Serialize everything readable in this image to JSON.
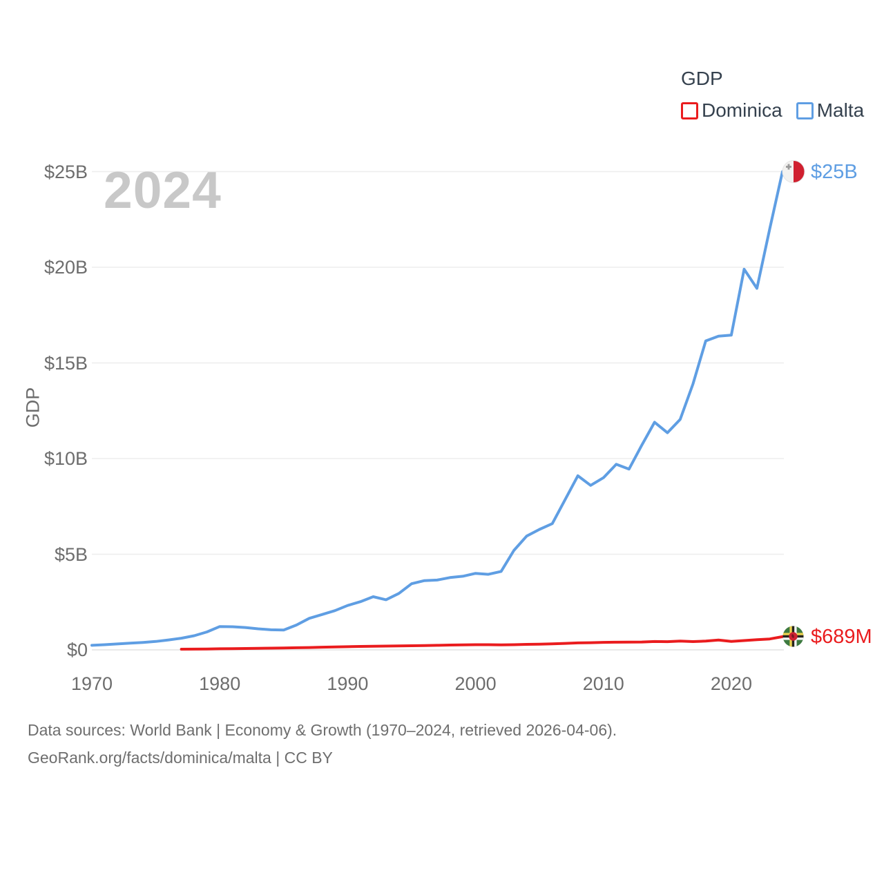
{
  "watermark_year": "2024",
  "footer": {
    "line1": "Data sources: World Bank | Economy & Growth (1970–2024, retrieved 2026-04-06).",
    "line2": "GeoRank.org/facts/dominica/malta | CC BY"
  },
  "chart_data": {
    "type": "line",
    "title": "GDP",
    "watermark_year": "2024",
    "ylabel": "GDP",
    "xlabel": "",
    "grid": true,
    "x_range": [
      1970,
      2024
    ],
    "ylim_billions": [
      0,
      25
    ],
    "ytick_labels": [
      "$0",
      "$5B",
      "$10B",
      "$15B",
      "$20B",
      "$25B"
    ],
    "ytick_billions": [
      0,
      5,
      10,
      15,
      20,
      25
    ],
    "xtick_labels": [
      "1970",
      "1980",
      "1990",
      "2000",
      "2010",
      "2020"
    ],
    "xtick_years": [
      1970,
      1980,
      1990,
      2000,
      2010,
      2020
    ],
    "legend": {
      "title": "GDP",
      "position": "top-right",
      "entries": [
        {
          "label": "Dominica",
          "color": "#ea1c1e"
        },
        {
          "label": "Malta",
          "color": "#5f9ee3"
        }
      ]
    },
    "series": [
      {
        "name": "Dominica",
        "color": "#ea1c1e",
        "unit": "USD millions",
        "start_year": 1977,
        "end_year": 2024,
        "end_label": "$689M",
        "flag_marker": "dominica-flag",
        "values": [
          36,
          41,
          45,
          58,
          66,
          73,
          80,
          91,
          101,
          111,
          123,
          139,
          150,
          166,
          179,
          189,
          198,
          208,
          218,
          229,
          238,
          252,
          264,
          270,
          269,
          263,
          271,
          289,
          298,
          319,
          338,
          365,
          375,
          394,
          402,
          409,
          413,
          438,
          430,
          459,
          432,
          457,
          513,
          444,
          488,
          532,
          570,
          689
        ]
      },
      {
        "name": "Malta",
        "color": "#5f9ee3",
        "unit": "USD billions",
        "start_year": 1970,
        "end_year": 2024,
        "end_label": "$25B",
        "flag_marker": "malta-flag",
        "values": [
          0.24,
          0.27,
          0.31,
          0.35,
          0.39,
          0.44,
          0.52,
          0.61,
          0.74,
          0.94,
          1.22,
          1.21,
          1.17,
          1.1,
          1.05,
          1.04,
          1.3,
          1.65,
          1.85,
          2.05,
          2.32,
          2.52,
          2.78,
          2.62,
          2.95,
          3.46,
          3.62,
          3.65,
          3.78,
          3.85,
          4.0,
          3.95,
          4.1,
          5.2,
          5.95,
          6.3,
          6.6,
          7.85,
          9.1,
          8.6,
          9.0,
          9.7,
          9.45,
          10.7,
          11.9,
          11.35,
          12.05,
          13.9,
          16.15,
          16.4,
          16.45,
          19.9,
          18.9,
          22.0,
          25.0
        ]
      }
    ]
  }
}
